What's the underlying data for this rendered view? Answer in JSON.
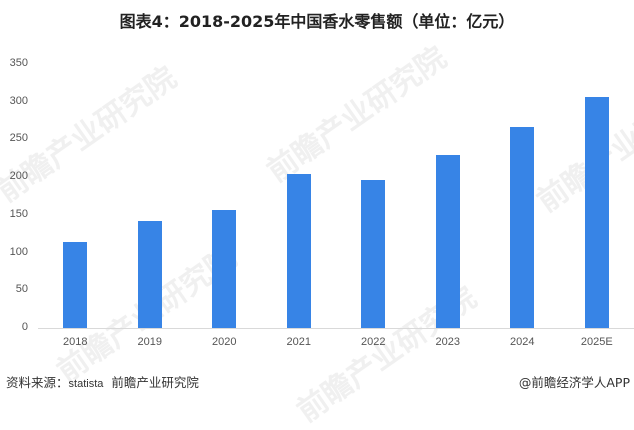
{
  "title": "图表4：2018-2025年中国香水零售额（单位：亿元）",
  "watermark_text": "前瞻产业研究院",
  "footer": {
    "source_label": "资料来源：",
    "source_value": "statista",
    "source_org": "前瞻产业研究院",
    "credit": "@前瞻经济学人APP"
  },
  "colors": {
    "bar": "#3784e6",
    "axis": "#d9d9d9"
  },
  "chart_data": {
    "type": "bar",
    "title": "图表4：2018-2025年中国香水零售额（单位：亿元）",
    "xlabel": "",
    "ylabel": "亿元",
    "categories": [
      "2018",
      "2019",
      "2020",
      "2021",
      "2022",
      "2023",
      "2024",
      "2025E"
    ],
    "values": [
      114,
      142,
      156,
      204,
      196,
      229,
      266,
      306
    ],
    "ylim": [
      0,
      350
    ],
    "yticks": [
      0,
      50,
      100,
      150,
      200,
      250,
      300,
      350
    ],
    "grid": false,
    "legend": "none"
  }
}
